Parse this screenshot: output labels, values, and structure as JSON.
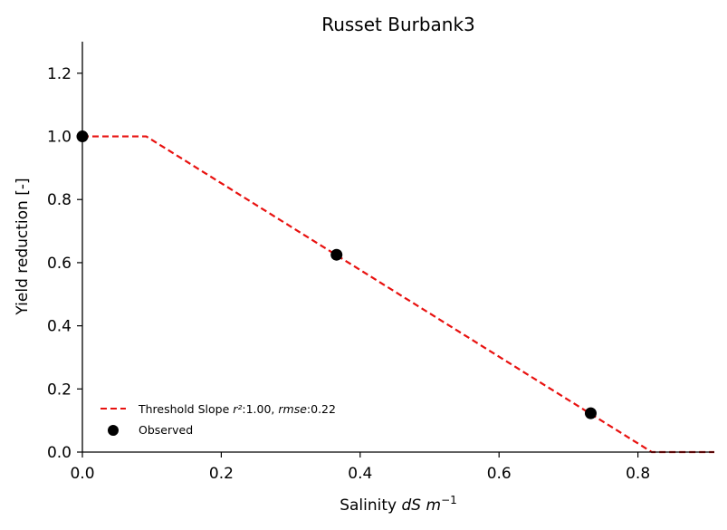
{
  "chart_data": {
    "type": "line",
    "title": "Russet Burbank3",
    "xlabel": {
      "prefix": "Salinity ",
      "math": "dS m",
      "exponent": "−1"
    },
    "ylabel": "Yield reduction [-]",
    "xlim": [
      0,
      0.91
    ],
    "ylim": [
      0,
      1.3
    ],
    "xticks": [
      0.0,
      0.2,
      0.4,
      0.6,
      0.8
    ],
    "xtick_labels": [
      "0.0",
      "0.2",
      "0.4",
      "0.6",
      "0.8"
    ],
    "yticks": [
      0.0,
      0.2,
      0.4,
      0.6,
      0.8,
      1.0,
      1.2
    ],
    "ytick_labels": [
      "0.0",
      "0.2",
      "0.4",
      "0.6",
      "0.8",
      "1.0",
      "1.2"
    ],
    "grid": false,
    "legend_position": "lower-left",
    "series": [
      {
        "name": "Threshold Slope",
        "kind": "line",
        "style": "dashed",
        "color": "#e8110f",
        "x": [
          0.0,
          0.092,
          0.82,
          0.91
        ],
        "y": [
          1.0,
          1.0,
          0.0,
          0.0
        ]
      },
      {
        "name": "Observed",
        "kind": "scatter",
        "color": "#000000",
        "x": [
          0.0,
          0.366,
          0.732
        ],
        "y": [
          1.0,
          0.625,
          0.123
        ]
      }
    ],
    "legend": [
      {
        "label_text": "Threshold Slope ",
        "r_label": "r²",
        "r_value": ":1.00, ",
        "rmse_label": "rmse",
        "rmse_value": ":0.22"
      },
      {
        "label_text": "Observed"
      }
    ]
  }
}
